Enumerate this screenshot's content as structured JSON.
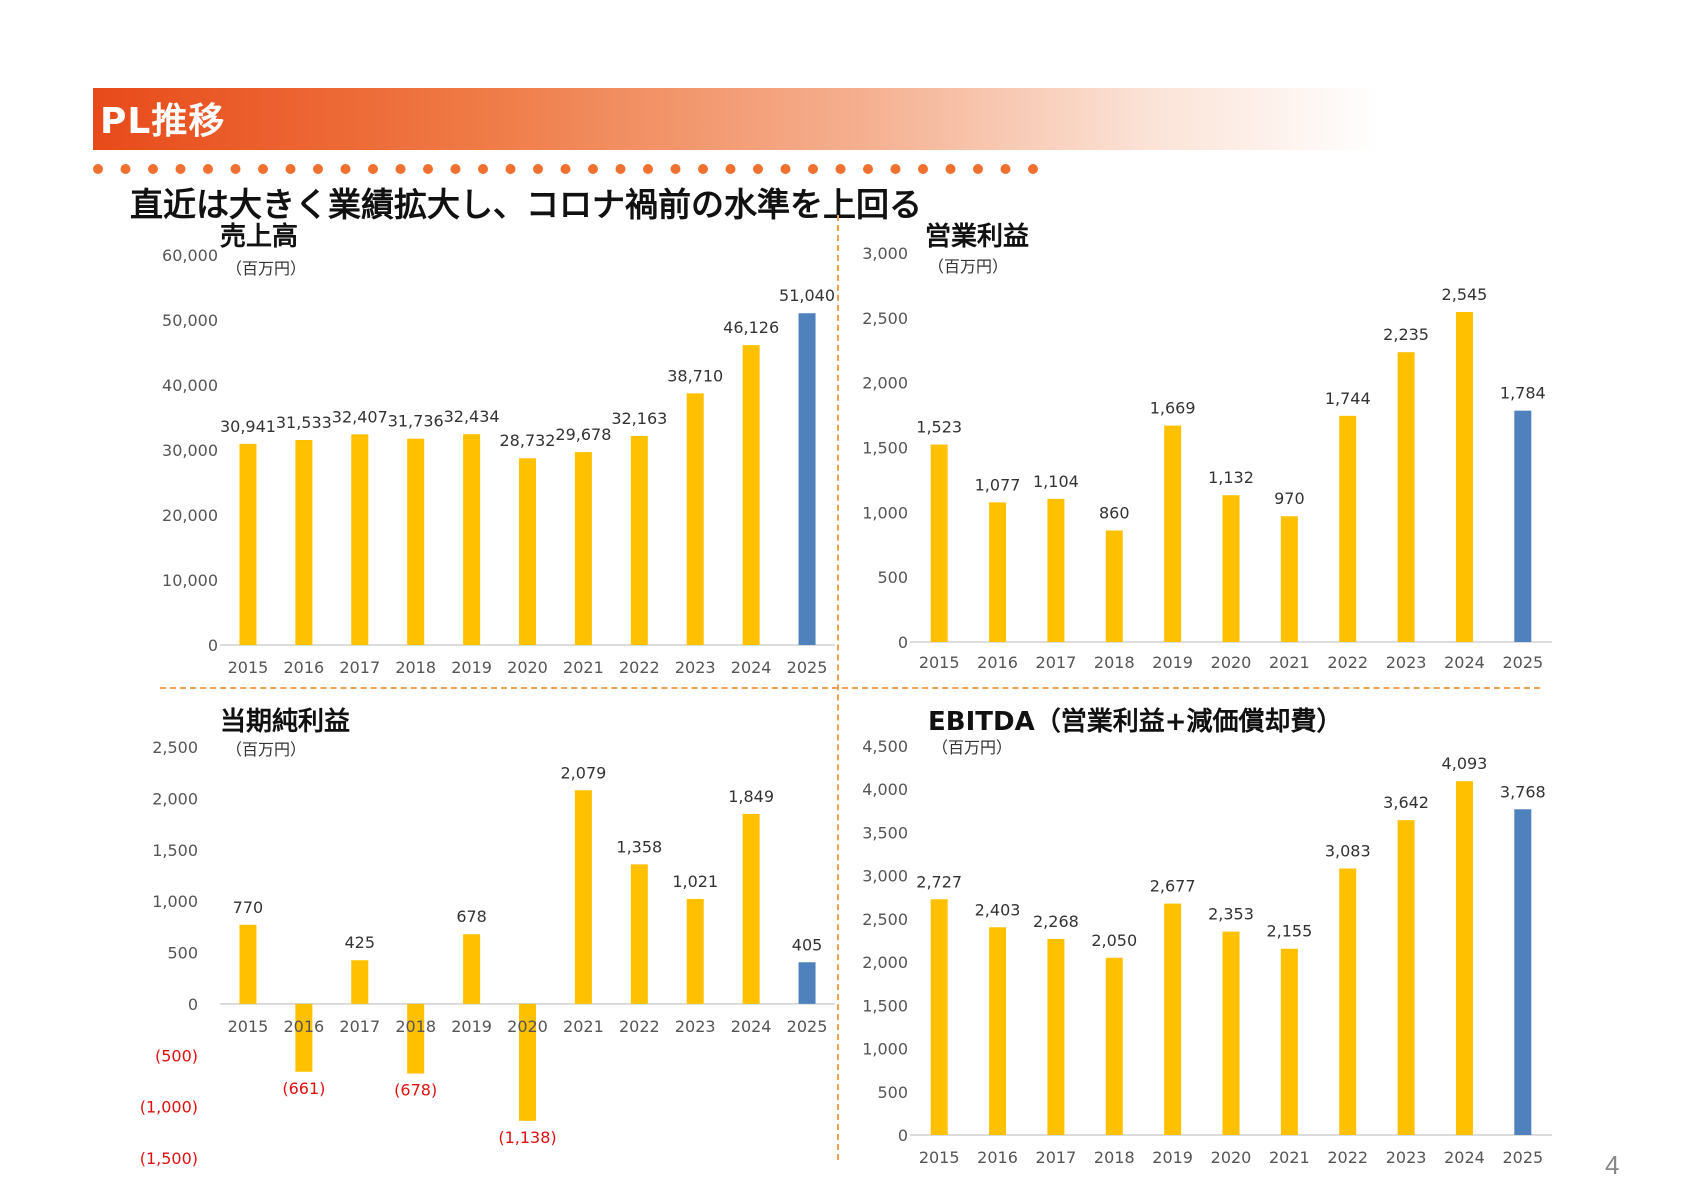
{
  "header": {
    "title": "PL推移"
  },
  "subtitle": "直近は大きく業績拡大し、コロナ禍前の水準を上回る",
  "page_number": "4",
  "colors": {
    "bar": "#ffc000",
    "highlight": "#4f81bd",
    "negative_text": "#e01010",
    "header_start": "#e84a1a"
  },
  "chart_data": [
    {
      "id": "sales",
      "type": "bar",
      "title": "売上高",
      "unit": "（百万円）",
      "categories": [
        "2015",
        "2016",
        "2017",
        "2018",
        "2019",
        "2020",
        "2021",
        "2022",
        "2023",
        "2024",
        "2025"
      ],
      "values": [
        30941,
        31533,
        32407,
        31736,
        32434,
        28732,
        29678,
        32163,
        38710,
        46126,
        51040
      ],
      "value_labels": [
        "30,941",
        "31,533",
        "32,407",
        "31,736",
        "32,434",
        "28,732",
        "29,678",
        "32,163",
        "38,710",
        "46,126",
        "51,040"
      ],
      "highlight_index": 10,
      "ylim": [
        0,
        60000
      ],
      "yticks": [
        0,
        10000,
        20000,
        30000,
        40000,
        50000,
        60000
      ],
      "ytick_labels": [
        "0",
        "10,000",
        "20,000",
        "30,000",
        "40,000",
        "50,000",
        "60,000"
      ],
      "grid": false
    },
    {
      "id": "operating_profit",
      "type": "bar",
      "title": "営業利益",
      "unit": "（百万円）",
      "categories": [
        "2015",
        "2016",
        "2017",
        "2018",
        "2019",
        "2020",
        "2021",
        "2022",
        "2023",
        "2024",
        "2025"
      ],
      "values": [
        1523,
        1077,
        1104,
        860,
        1669,
        1132,
        970,
        1744,
        2235,
        2545,
        1784
      ],
      "value_labels": [
        "1,523",
        "1,077",
        "1,104",
        "860",
        "1,669",
        "1,132",
        "970",
        "1,744",
        "2,235",
        "2,545",
        "1,784"
      ],
      "highlight_index": 10,
      "ylim": [
        0,
        3000
      ],
      "yticks": [
        0,
        500,
        1000,
        1500,
        2000,
        2500,
        3000
      ],
      "ytick_labels": [
        "0",
        "500",
        "1,000",
        "1,500",
        "2,000",
        "2,500",
        "3,000"
      ],
      "grid": false
    },
    {
      "id": "net_income",
      "type": "bar",
      "title": "当期純利益",
      "unit": "（百万円）",
      "categories": [
        "2015",
        "2016",
        "2017",
        "2018",
        "2019",
        "2020",
        "2021",
        "2022",
        "2023",
        "2024",
        "2025"
      ],
      "values": [
        770,
        -661,
        425,
        -678,
        678,
        -1138,
        2079,
        1358,
        1021,
        1849,
        405
      ],
      "value_labels": [
        "770",
        "(661)",
        "425",
        "(678)",
        "678",
        "(1,138)",
        "2,079",
        "1,358",
        "1,021",
        "1,849",
        "405"
      ],
      "highlight_index": 10,
      "ylim": [
        -1500,
        2500
      ],
      "yticks": [
        -1500,
        -1000,
        -500,
        0,
        500,
        1000,
        1500,
        2000,
        2500
      ],
      "ytick_labels": [
        "(1,500)",
        "(1,000)",
        "(500)",
        "0",
        "500",
        "1,000",
        "1,500",
        "2,000",
        "2,500"
      ],
      "grid": false
    },
    {
      "id": "ebitda",
      "type": "bar",
      "title": "EBITDA（営業利益+減価償却費）",
      "unit": "（百万円）",
      "categories": [
        "2015",
        "2016",
        "2017",
        "2018",
        "2019",
        "2020",
        "2021",
        "2022",
        "2023",
        "2024",
        "2025"
      ],
      "values": [
        2727,
        2403,
        2268,
        2050,
        2677,
        2353,
        2155,
        3083,
        3642,
        4093,
        3768
      ],
      "value_labels": [
        "2,727",
        "2,403",
        "2,268",
        "2,050",
        "2,677",
        "2,353",
        "2,155",
        "3,083",
        "3,642",
        "4,093",
        "3,768"
      ],
      "highlight_index": 10,
      "ylim": [
        0,
        4500
      ],
      "yticks": [
        0,
        500,
        1000,
        1500,
        2000,
        2500,
        3000,
        3500,
        4000,
        4500
      ],
      "ytick_labels": [
        "0",
        "500",
        "1,000",
        "1,500",
        "2,000",
        "2,500",
        "3,000",
        "3,500",
        "4,000",
        "4,500"
      ],
      "grid": false
    }
  ]
}
